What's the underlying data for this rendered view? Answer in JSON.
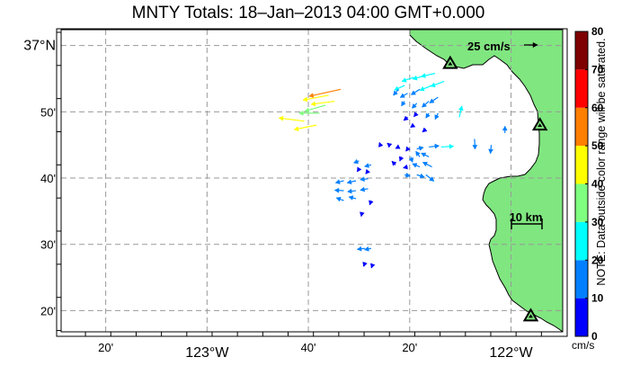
{
  "title": "MNTY Totals: 18–Jan–2013 04:00 GMT+0.000",
  "note": "NOTE: Data outside color range will be saturated.",
  "units": "cm/s",
  "scale_arrow_label": "25 cm/s",
  "distance_scale_label": "10 km",
  "axis": {
    "x_ticks": [
      {
        "lon": -123.3333,
        "label": "20'",
        "major": false
      },
      {
        "lon": -123.0,
        "label": "123°W",
        "major": true
      },
      {
        "lon": -122.6667,
        "label": "40'",
        "major": false
      },
      {
        "lon": -122.3333,
        "label": "20'",
        "major": false
      },
      {
        "lon": -122.0,
        "label": "122°W",
        "major": true
      }
    ],
    "y_ticks": [
      {
        "lat": 37.0,
        "label": "37°N",
        "major": true
      },
      {
        "lat": 36.8333,
        "label": "50'",
        "major": false
      },
      {
        "lat": 36.6667,
        "label": "40'",
        "major": false
      },
      {
        "lat": 36.5,
        "label": "30'",
        "major": false
      },
      {
        "lat": 36.3333,
        "label": "20'",
        "major": false
      }
    ]
  },
  "colorbar": {
    "ticks": [
      "0",
      "10",
      "20",
      "30",
      "40",
      "50",
      "60",
      "70",
      "80"
    ],
    "colors": [
      "#0000ff",
      "#007fff",
      "#00ffff",
      "#7fff7f",
      "#ffff00",
      "#ff7f00",
      "#ff0000",
      "#7f0000"
    ]
  },
  "colors": {
    "land": "#80e680",
    "coast": "#000000",
    "grid": "#999999",
    "site_fill": "#80e680"
  },
  "sites": [
    {
      "lon": -122.2,
      "lat": 36.955
    },
    {
      "lon": -121.905,
      "lat": 36.8
    },
    {
      "lon": -121.935,
      "lat": 36.32
    }
  ],
  "vectors": [
    [
      -122.56,
      36.89,
      -0.82,
      -0.18,
      57
    ],
    [
      -122.6,
      36.875,
      -0.8,
      -0.15,
      46
    ],
    [
      -122.58,
      36.86,
      -0.75,
      -0.1,
      42
    ],
    [
      -122.61,
      36.85,
      -0.7,
      -0.2,
      38
    ],
    [
      -122.63,
      36.83,
      -0.98,
      0.0,
      36
    ],
    [
      -122.68,
      36.81,
      -0.8,
      0.1,
      45
    ],
    [
      -122.64,
      36.8,
      -0.75,
      -0.15,
      40
    ],
    [
      -122.25,
      36.93,
      -0.9,
      -0.2,
      25
    ],
    [
      -122.28,
      36.925,
      -0.9,
      -0.25,
      24
    ],
    [
      -122.32,
      36.92,
      -0.9,
      -0.3,
      22
    ],
    [
      -122.35,
      36.9,
      -0.85,
      -0.4,
      20
    ],
    [
      -122.22,
      36.91,
      -0.8,
      -0.3,
      25
    ],
    [
      -122.26,
      36.9,
      -0.85,
      -0.35,
      23
    ],
    [
      -122.3,
      36.89,
      -0.8,
      -0.5,
      18
    ],
    [
      -122.34,
      36.88,
      -0.8,
      -0.45,
      15
    ],
    [
      -122.37,
      36.89,
      -0.6,
      -0.7,
      14
    ],
    [
      -122.24,
      36.87,
      -0.75,
      -0.5,
      18
    ],
    [
      -122.27,
      36.86,
      -0.7,
      -0.6,
      16
    ],
    [
      -122.31,
      36.855,
      -0.65,
      -0.7,
      12
    ],
    [
      -122.35,
      36.86,
      -0.55,
      -0.8,
      10
    ],
    [
      -122.24,
      36.83,
      -0.4,
      -0.85,
      12
    ],
    [
      -122.27,
      36.83,
      -0.5,
      -0.8,
      10
    ],
    [
      -122.31,
      36.83,
      -0.6,
      -0.75,
      8
    ],
    [
      -122.34,
      36.82,
      -0.7,
      -0.6,
      9
    ],
    [
      -122.17,
      36.82,
      0.2,
      0.9,
      20
    ],
    [
      -122.28,
      36.79,
      -0.7,
      -0.6,
      8
    ],
    [
      -122.32,
      36.8,
      -0.7,
      -0.5,
      7
    ],
    [
      -122.4,
      36.75,
      -0.7,
      0.6,
      5
    ],
    [
      -122.43,
      36.75,
      -0.3,
      0.8,
      4
    ],
    [
      -122.37,
      36.745,
      -0.8,
      -0.4,
      6
    ],
    [
      -122.34,
      36.74,
      -0.6,
      -0.75,
      5
    ],
    [
      -122.31,
      36.74,
      0.9,
      0.2,
      12
    ],
    [
      -122.27,
      36.745,
      0.85,
      0.1,
      18
    ],
    [
      -122.23,
      36.745,
      0.9,
      0.05,
      22
    ],
    [
      -122.36,
      36.72,
      -0.4,
      -0.9,
      8
    ],
    [
      -122.33,
      36.72,
      0.3,
      -0.9,
      10
    ],
    [
      -122.3,
      36.72,
      -0.5,
      0.7,
      12
    ],
    [
      -122.27,
      36.72,
      -0.8,
      0.4,
      15
    ],
    [
      -122.38,
      36.7,
      -0.6,
      0.6,
      9
    ],
    [
      -122.34,
      36.695,
      -0.9,
      -0.2,
      8
    ],
    [
      -122.3,
      36.695,
      -0.85,
      0.35,
      14
    ],
    [
      -122.26,
      36.695,
      -0.8,
      0.4,
      18
    ],
    [
      -122.35,
      36.675,
      0.9,
      -0.2,
      10
    ],
    [
      -122.31,
      36.675,
      0.85,
      -0.25,
      14
    ],
    [
      -122.28,
      36.675,
      0.7,
      -0.55,
      18
    ],
    [
      -122.12,
      36.765,
      0.05,
      -1.0,
      18
    ],
    [
      -122.065,
      36.75,
      -0.1,
      -0.99,
      15
    ],
    [
      -122.02,
      36.78,
      0.0,
      1.0,
      12
    ],
    [
      -122.5,
      36.71,
      -0.75,
      -0.3,
      10
    ],
    [
      -122.46,
      36.7,
      -0.8,
      -0.2,
      12
    ],
    [
      -122.5,
      36.69,
      -0.5,
      -0.8,
      6
    ],
    [
      -122.47,
      36.685,
      -0.6,
      -0.75,
      7
    ],
    [
      -122.55,
      36.66,
      -0.8,
      -0.2,
      15
    ],
    [
      -122.51,
      36.66,
      -0.85,
      -0.2,
      16
    ],
    [
      -122.47,
      36.665,
      -0.9,
      -0.1,
      14
    ],
    [
      -122.55,
      36.635,
      -0.9,
      0.05,
      16
    ],
    [
      -122.51,
      36.635,
      -0.85,
      -0.1,
      15
    ],
    [
      -122.47,
      36.64,
      -0.85,
      -0.15,
      14
    ],
    [
      -122.55,
      36.61,
      -0.8,
      0.3,
      14
    ],
    [
      -122.51,
      36.615,
      -0.8,
      0.2,
      13
    ],
    [
      -122.46,
      36.61,
      -0.3,
      -0.9,
      8
    ],
    [
      -122.49,
      36.58,
      -0.2,
      -0.9,
      7
    ],
    [
      -122.48,
      36.49,
      -0.8,
      -0.1,
      14
    ],
    [
      -122.46,
      36.49,
      -0.7,
      -0.15,
      12
    ],
    [
      -122.48,
      36.455,
      -0.3,
      -0.9,
      8
    ],
    [
      -122.455,
      36.45,
      -0.3,
      -0.85,
      7
    ]
  ]
}
